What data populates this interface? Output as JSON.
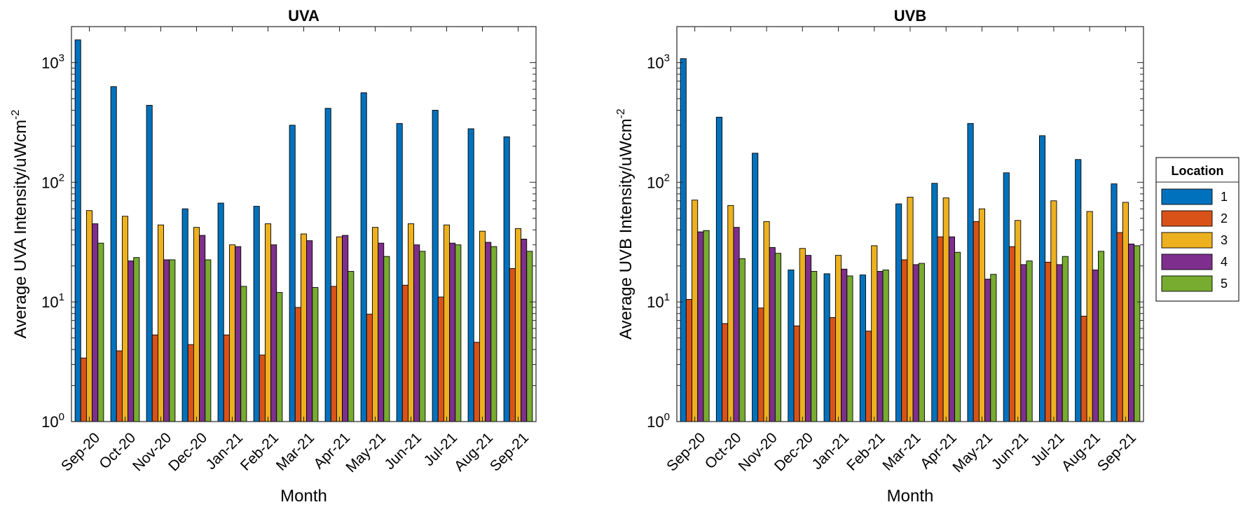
{
  "chart_data": [
    {
      "type": "bar",
      "title": "UVA",
      "xlabel": "Month",
      "ylabel": "Average UVA Intensity/uWcm",
      "ylabel_exponent": "-2",
      "yscale": "log",
      "ylim": [
        1,
        2000
      ],
      "yticks": [
        {
          "base": "10",
          "exp": "0"
        },
        {
          "base": "10",
          "exp": "1"
        },
        {
          "base": "10",
          "exp": "2"
        },
        {
          "base": "10",
          "exp": "3"
        }
      ],
      "categories": [
        "Sep-20",
        "Oct-20",
        "Nov-20",
        "Dec-20",
        "Jan-21",
        "Feb-21",
        "Mar-21",
        "Apr-21",
        "May-21",
        "Jun-21",
        "Jul-21",
        "Aug-21",
        "Sep-21"
      ],
      "series": [
        {
          "name": "1",
          "values": [
            1550,
            630,
            440,
            60,
            67,
            63,
            300,
            415,
            560,
            310,
            400,
            280,
            240
          ]
        },
        {
          "name": "2",
          "values": [
            3.4,
            3.9,
            5.3,
            4.4,
            5.3,
            3.6,
            9.0,
            13.5,
            7.9,
            13.8,
            11.0,
            4.6,
            19.0
          ]
        },
        {
          "name": "3",
          "values": [
            58,
            52,
            44,
            42,
            30,
            45,
            37,
            35,
            42,
            45,
            44,
            39,
            41
          ]
        },
        {
          "name": "4",
          "values": [
            45,
            22,
            22.5,
            36,
            29,
            30,
            32.5,
            36,
            31,
            30,
            31,
            31.5,
            33.5
          ]
        },
        {
          "name": "5",
          "values": [
            31,
            23.5,
            22.5,
            22.5,
            13.5,
            12.0,
            13.2,
            18,
            24,
            26.5,
            30,
            29,
            26.5
          ]
        }
      ]
    },
    {
      "type": "bar",
      "title": "UVB",
      "xlabel": "Month",
      "ylabel": "Average UVB Intensity/uWcm",
      "ylabel_exponent": "-2",
      "yscale": "log",
      "ylim": [
        1,
        2000
      ],
      "yticks": [
        {
          "base": "10",
          "exp": "0"
        },
        {
          "base": "10",
          "exp": "1"
        },
        {
          "base": "10",
          "exp": "2"
        },
        {
          "base": "10",
          "exp": "3"
        }
      ],
      "categories": [
        "Sep-20",
        "Oct-20",
        "Nov-20",
        "Dec-20",
        "Jan-21",
        "Feb-21",
        "Mar-21",
        "Apr-21",
        "May-21",
        "Jun-21",
        "Jul-21",
        "Aug-21",
        "Sep-21"
      ],
      "series": [
        {
          "name": "1",
          "values": [
            1080,
            350,
            175,
            18.5,
            17.2,
            16.8,
            66,
            98,
            310,
            120,
            245,
            155,
            97
          ]
        },
        {
          "name": "2",
          "values": [
            10.5,
            6.6,
            8.9,
            6.3,
            7.4,
            5.7,
            22.5,
            35,
            47,
            29,
            21.5,
            7.6,
            38
          ]
        },
        {
          "name": "3",
          "values": [
            71,
            64,
            47,
            28,
            24.5,
            29.5,
            75,
            74,
            60,
            48,
            70,
            57,
            68
          ]
        },
        {
          "name": "4",
          "values": [
            38.5,
            42,
            28.5,
            24.5,
            18.8,
            18,
            20.5,
            35,
            15.5,
            20.5,
            20.5,
            18.5,
            30.5
          ]
        },
        {
          "name": "5",
          "values": [
            39.5,
            23,
            25.5,
            18,
            16.5,
            18.5,
            21,
            26,
            17,
            22,
            24,
            26.5,
            29.5
          ]
        }
      ]
    }
  ],
  "legend": {
    "title": "Location",
    "entries": [
      "1",
      "2",
      "3",
      "4",
      "5"
    ],
    "colors": [
      "#0072BD",
      "#D95319",
      "#EDB120",
      "#7E2F8E",
      "#77AC30"
    ]
  }
}
